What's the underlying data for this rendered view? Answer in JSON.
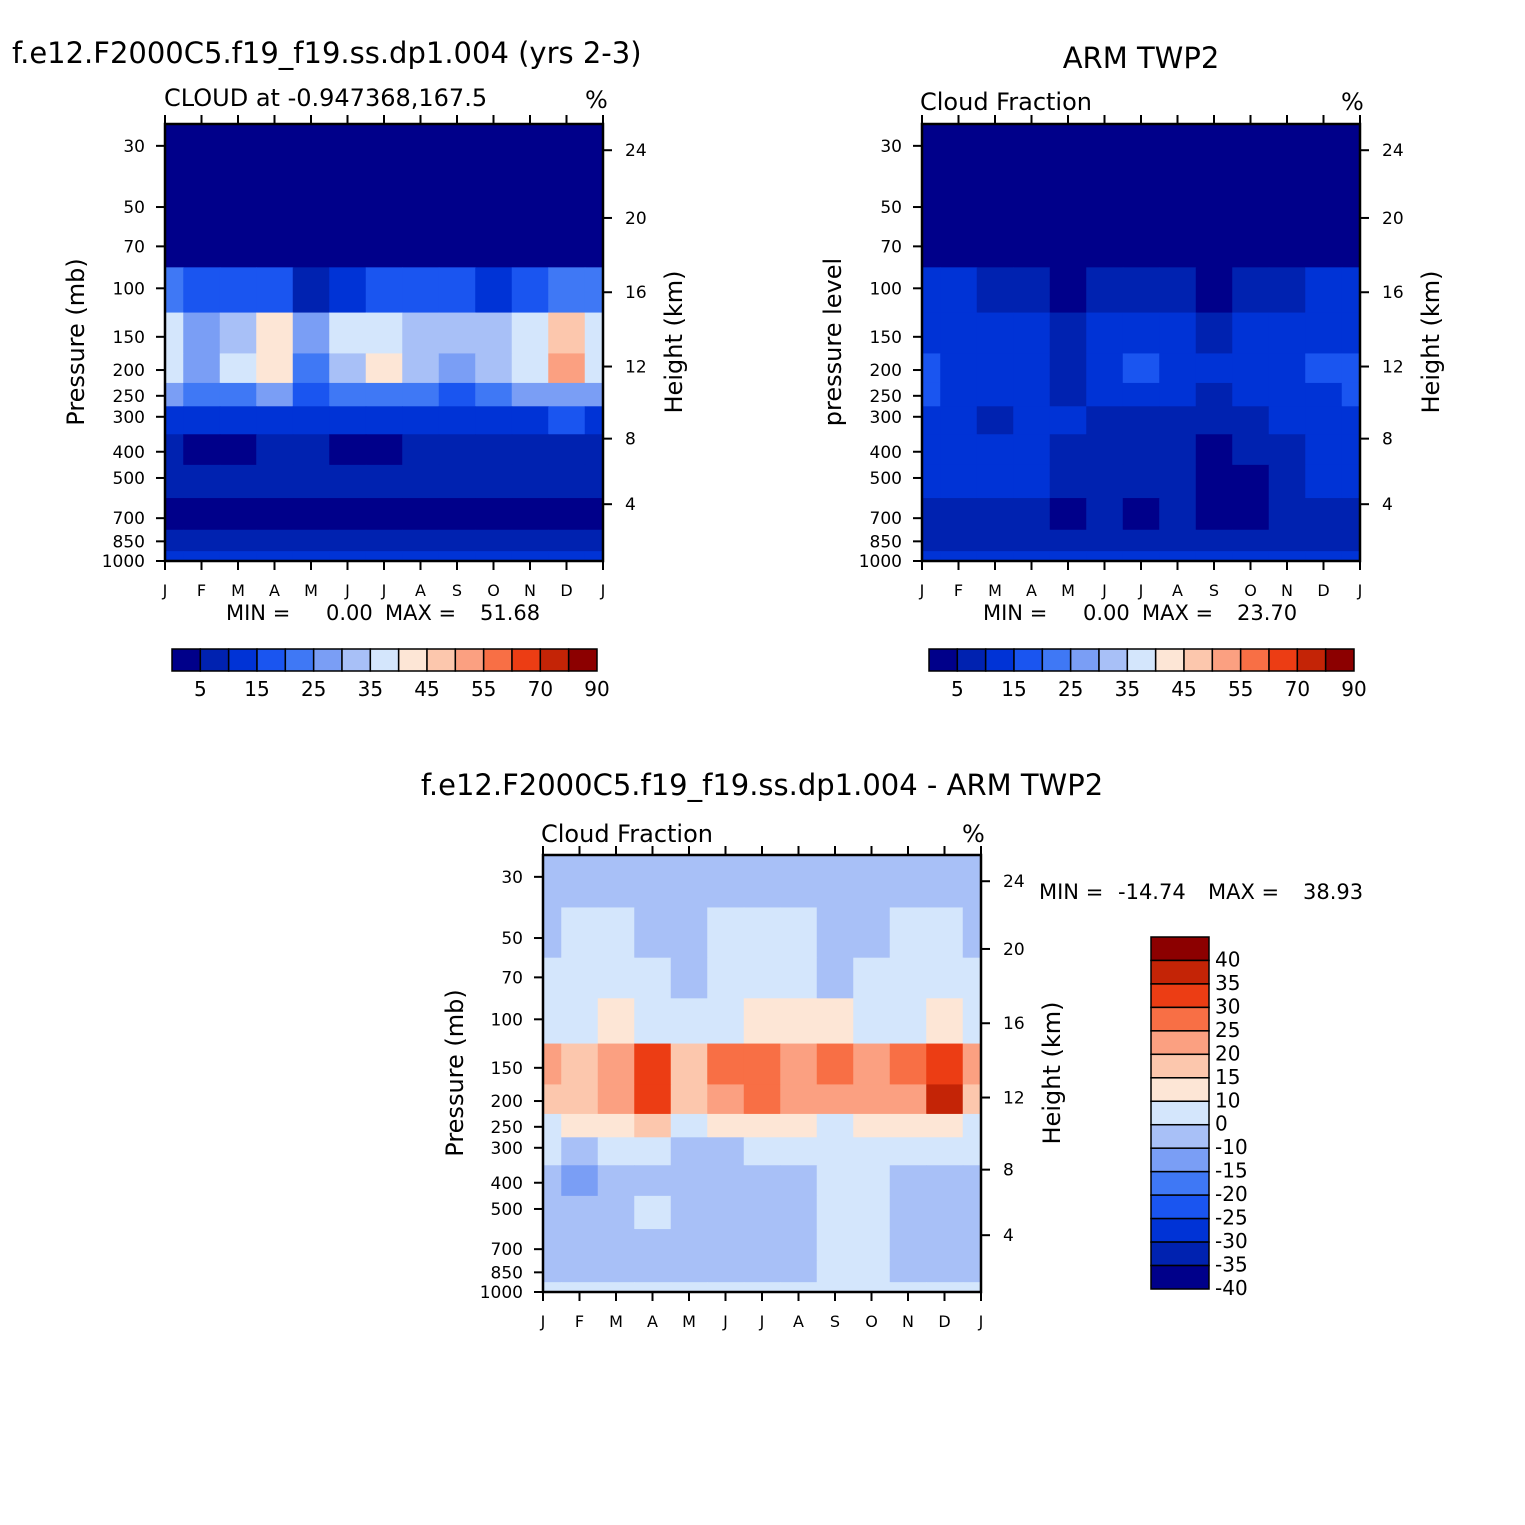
{
  "figure": {
    "months": [
      "J",
      "F",
      "M",
      "A",
      "M",
      "J",
      "J",
      "A",
      "S",
      "O",
      "N",
      "D",
      "J"
    ],
    "pressure_levels": [
      "30",
      "50",
      "70",
      "100",
      "150",
      "200",
      "250",
      "300",
      "400",
      "500",
      "700",
      "850",
      "1000"
    ],
    "height_ticks": [
      "24",
      "20",
      "16",
      "12",
      "8",
      "4"
    ],
    "colors": {
      "model_palette": [
        "#00008a",
        "#0022b0",
        "#0033d6",
        "#1a55f0",
        "#3f78f5",
        "#7a9ef5",
        "#a8c0f7",
        "#d4e6fc",
        "#fde6d6",
        "#fcc7ad",
        "#fba081",
        "#f86f45",
        "#ec3d14",
        "#c42406",
        "#8c0000"
      ],
      "diff_palette": [
        "#00008a",
        "#0022b0",
        "#0033d6",
        "#1a55f0",
        "#3f78f5",
        "#7a9ef5",
        "#a8c0f7",
        "#d4e6fc",
        "#fde6d6",
        "#fcc7ad",
        "#fba081",
        "#f86f45",
        "#ec3d14",
        "#c42406",
        "#8c0000"
      ]
    }
  },
  "chart_data": [
    {
      "type": "heatmap",
      "title": "f.e12.F2000C5.f19_f19.ss.dp1.004 (yrs 2-3)",
      "left_label": "CLOUD at -0.947368,167.5",
      "right_label": "%",
      "ylabel": "Pressure (mb)",
      "y2label": "Height (km)",
      "xlabel": "",
      "stats": {
        "min_label": "MIN =",
        "min": "0.00",
        "max_label": "MAX =",
        "max": "51.68"
      },
      "colorbar_ticks": [
        "5",
        "15",
        "25",
        "35",
        "45",
        "55",
        "70",
        "90"
      ],
      "levels": [
        0,
        5,
        10,
        15,
        20,
        25,
        30,
        35,
        40,
        45,
        50,
        55,
        60,
        70,
        80,
        90
      ],
      "y_levels_mb": [
        30,
        50,
        70,
        100,
        150,
        200,
        250,
        300,
        400,
        500,
        700,
        850,
        1000
      ],
      "values": [
        [
          2,
          2,
          2,
          2,
          2,
          2,
          2,
          2,
          2,
          2,
          2,
          2,
          2
        ],
        [
          2,
          2,
          2,
          2,
          2,
          2,
          2,
          2,
          2,
          2,
          2,
          2,
          2
        ],
        [
          3,
          3,
          3,
          3,
          2,
          3,
          3,
          3,
          3,
          3,
          3,
          3,
          3
        ],
        [
          20,
          19,
          18,
          15,
          8,
          14,
          16,
          16,
          15,
          14,
          17,
          20,
          20
        ],
        [
          35,
          28,
          32,
          40,
          25,
          36,
          38,
          32,
          30,
          33,
          38,
          46,
          35
        ],
        [
          38,
          27,
          36,
          44,
          24,
          33,
          42,
          32,
          28,
          34,
          36,
          51,
          38
        ],
        [
          26,
          22,
          24,
          28,
          18,
          22,
          24,
          22,
          18,
          22,
          26,
          28,
          26
        ],
        [
          14,
          12,
          12,
          14,
          10,
          10,
          12,
          10,
          10,
          10,
          12,
          16,
          14
        ],
        [
          8,
          3,
          3,
          8,
          6,
          3,
          4,
          6,
          6,
          6,
          7,
          5,
          8
        ],
        [
          7,
          6,
          6,
          9,
          5,
          6,
          6,
          6,
          5,
          7,
          6,
          7,
          7
        ],
        [
          4,
          3,
          3,
          3,
          3,
          3,
          3,
          3,
          3,
          3,
          3,
          4,
          4
        ],
        [
          8,
          6,
          6,
          7,
          6,
          6,
          6,
          6,
          6,
          6,
          6,
          7,
          8
        ],
        [
          14,
          12,
          12,
          12,
          12,
          12,
          12,
          12,
          12,
          12,
          12,
          13,
          14
        ]
      ]
    },
    {
      "type": "heatmap",
      "title": "ARM TWP2",
      "left_label": "Cloud Fraction",
      "right_label": "%",
      "ylabel": "pressure level",
      "y2label": "Height (km)",
      "xlabel": "",
      "stats": {
        "min_label": "MIN =",
        "min": "0.00",
        "max_label": "MAX =",
        "max": "23.70"
      },
      "colorbar_ticks": [
        "5",
        "15",
        "25",
        "35",
        "45",
        "55",
        "70",
        "90"
      ],
      "levels": [
        0,
        5,
        10,
        15,
        20,
        25,
        30,
        35,
        40,
        45,
        50,
        55,
        60,
        70,
        80,
        90
      ],
      "y_levels_mb": [
        30,
        50,
        70,
        100,
        150,
        200,
        250,
        300,
        400,
        500,
        700,
        850,
        1000
      ],
      "values": [
        [
          1,
          1,
          1,
          1,
          1,
          1,
          1,
          1,
          1,
          1,
          1,
          1,
          1
        ],
        [
          1,
          1,
          1,
          1,
          1,
          1,
          1,
          1,
          1,
          1,
          1,
          1,
          1
        ],
        [
          2,
          2,
          2,
          2,
          2,
          2,
          2,
          2,
          2,
          2,
          2,
          2,
          2
        ],
        [
          11,
          10,
          9,
          7,
          3,
          6,
          6,
          5,
          4,
          6,
          8,
          10,
          11
        ],
        [
          14,
          12,
          12,
          12,
          8,
          12,
          13,
          11,
          8,
          11,
          12,
          12,
          14
        ],
        [
          19,
          12,
          11,
          13,
          9,
          14,
          16,
          12,
          10,
          12,
          14,
          16,
          19
        ],
        [
          18,
          12,
          10,
          10,
          9,
          11,
          11,
          10,
          9,
          11,
          12,
          14,
          18
        ],
        [
          12,
          12,
          8,
          10,
          10,
          9,
          9,
          9,
          8,
          9,
          10,
          12,
          12
        ],
        [
          11,
          12,
          10,
          11,
          9,
          7,
          7,
          7,
          3,
          5,
          8,
          10,
          11
        ],
        [
          11,
          12,
          10,
          11,
          8,
          7,
          7,
          9,
          3,
          4,
          8,
          10,
          11
        ],
        [
          7,
          9,
          8,
          7,
          4,
          6,
          4,
          6,
          3,
          3,
          7,
          8,
          7
        ],
        [
          9,
          7,
          7,
          7,
          6,
          6,
          6,
          6,
          6,
          6,
          7,
          8,
          9
        ],
        [
          14,
          12,
          12,
          12,
          12,
          12,
          12,
          12,
          12,
          12,
          12,
          13,
          14
        ]
      ]
    },
    {
      "type": "heatmap",
      "title": "f.e12.F2000C5.f19_f19.ss.dp1.004 - ARM TWP2",
      "left_label": "Cloud Fraction",
      "right_label": "%",
      "ylabel": "Pressure (mb)",
      "y2label": "Height (km)",
      "xlabel": "",
      "stats": {
        "min_label": "MIN =",
        "min": "-14.74",
        "max_label": "MAX =",
        "max": "38.93"
      },
      "colorbar_ticks": [
        "40",
        "35",
        "30",
        "25",
        "20",
        "15",
        "10",
        "0",
        "-10",
        "-15",
        "-20",
        "-25",
        "-30",
        "-35",
        "-40"
      ],
      "levels": [
        -40,
        -35,
        -30,
        -25,
        -20,
        -15,
        -10,
        0,
        10,
        15,
        20,
        25,
        30,
        35,
        40
      ],
      "y_levels_mb": [
        30,
        50,
        70,
        100,
        150,
        200,
        250,
        300,
        400,
        500,
        700,
        850,
        1000
      ],
      "values": [
        [
          -2,
          -2,
          -2,
          -2,
          -2,
          -2,
          -2,
          -2,
          -2,
          -2,
          -2,
          -2,
          -2
        ],
        [
          -1,
          1,
          1,
          -1,
          -1,
          1,
          1,
          1,
          -1,
          -1,
          1,
          1,
          -1
        ],
        [
          1,
          2,
          2,
          1,
          -1,
          2,
          2,
          2,
          -1,
          1,
          2,
          2,
          1
        ],
        [
          9,
          9,
          10,
          9,
          5,
          8,
          10,
          11,
          11,
          8,
          9,
          11,
          9
        ],
        [
          21,
          16,
          22,
          30,
          17,
          26,
          27,
          22,
          28,
          22,
          25,
          33,
          21
        ],
        [
          19,
          15,
          24,
          32,
          16,
          20,
          27,
          20,
          20,
          21,
          23,
          36,
          19
        ],
        [
          8,
          10,
          14,
          18,
          9,
          11,
          13,
          12,
          9,
          11,
          13,
          14,
          8
        ],
        [
          2,
          -1,
          4,
          4,
          -1,
          -1,
          2,
          1,
          2,
          1,
          2,
          4,
          2
        ],
        [
          -3,
          -12,
          -7,
          -2,
          -2,
          -4,
          -2,
          -1,
          3,
          1,
          -1,
          -5,
          -3
        ],
        [
          -4,
          -9,
          -4,
          3,
          -2,
          -1,
          -1,
          -3,
          2,
          3,
          -2,
          -3,
          -4
        ],
        [
          -3,
          -6,
          -5,
          -4,
          -1,
          -3,
          -1,
          -3,
          1,
          2,
          -4,
          -2,
          -3
        ],
        [
          -1,
          -1,
          -1,
          -1,
          -1,
          -1,
          -1,
          -1,
          1,
          1,
          -1,
          -1,
          -1
        ],
        [
          1,
          1,
          1,
          1,
          1,
          1,
          1,
          1,
          1,
          1,
          1,
          1,
          1
        ]
      ]
    }
  ]
}
